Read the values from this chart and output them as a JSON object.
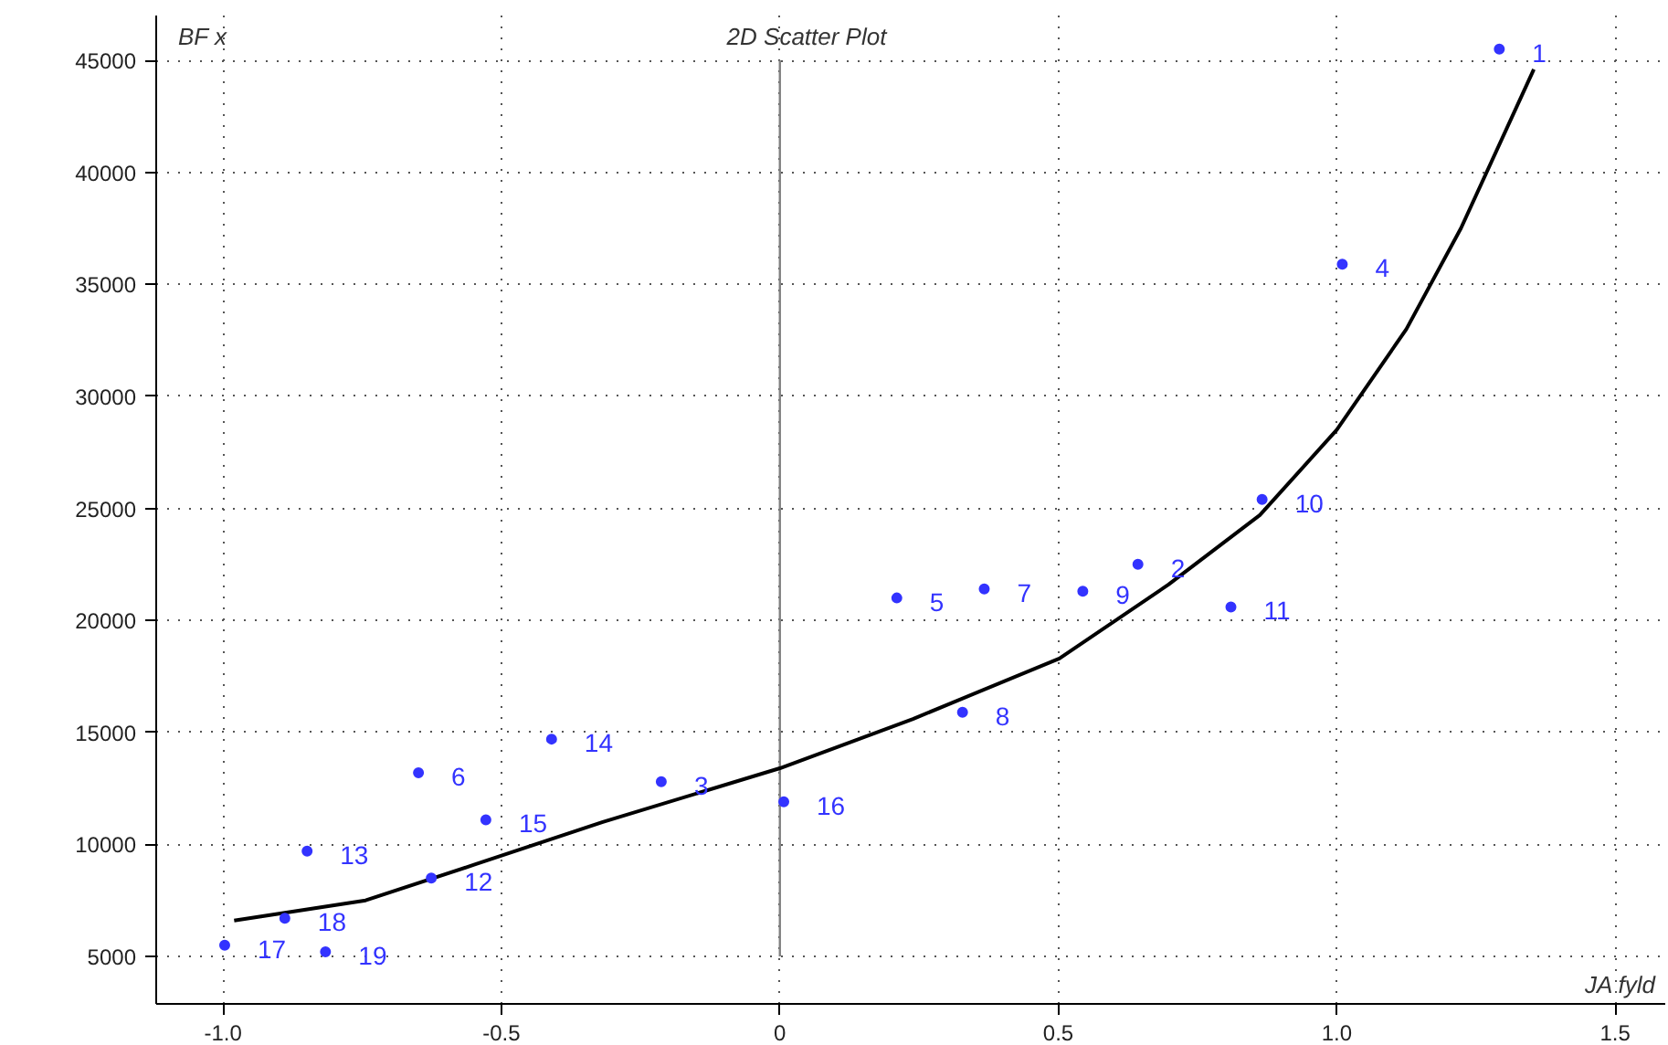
{
  "chart_data": {
    "type": "scatter",
    "title": "2D Scatter Plot",
    "xlabel": "JA fyld",
    "ylabel": "BF x",
    "xlim": [
      -1.12,
      1.59
    ],
    "ylim": [
      2880,
      47000
    ],
    "xticks": [
      {
        "value": -1.0,
        "label": "-1.0"
      },
      {
        "value": -0.5,
        "label": "-0.5"
      },
      0,
      {
        "value": 0.5,
        "label": "0.5"
      },
      {
        "value": 1.0,
        "label": "1.0"
      },
      {
        "value": 1.5,
        "label": "1.5"
      }
    ],
    "yticks": [
      5000,
      10000,
      15000,
      20000,
      25000,
      30000,
      35000,
      40000,
      45000
    ],
    "grid": true,
    "marker": "circle",
    "ref_lines": [
      {
        "axis": "x",
        "value": 0,
        "label": null,
        "color": "#808080"
      }
    ],
    "series": [
      {
        "color": "#3333ff",
        "x": [
          1.292,
          0.643,
          -0.213,
          1.01,
          0.21,
          -0.649,
          0.367,
          0.328,
          0.544,
          0.866,
          0.81,
          -0.626,
          -0.849,
          -0.41,
          -0.528,
          0.007,
          -0.997,
          -0.889,
          -0.816
        ],
        "values": [
          45500,
          22500,
          12800,
          35900,
          21000,
          13200,
          21400,
          15900,
          21300,
          25400,
          20600,
          8500,
          9700,
          14700,
          11100,
          11900,
          5500,
          6700,
          5200
        ]
      },
      {
        "type": "line",
        "color": "#000000",
        "line_style": "solid",
        "marker": "none",
        "x": [
          -0.98,
          -0.744,
          -0.548,
          -0.318,
          0,
          0.239,
          0.502,
          0.698,
          0.862,
          1.0,
          1.125,
          1.223,
          1.354
        ],
        "values": [
          6600,
          7500,
          9100,
          11000,
          13400,
          15600,
          18300,
          21600,
          24700,
          28500,
          33000,
          37500,
          44600
        ]
      }
    ],
    "annotations": [
      {
        "text": "1",
        "x": 1.292,
        "y": 45500
      },
      {
        "text": "2",
        "x": 0.643,
        "y": 22500
      },
      {
        "text": "3",
        "x": -0.213,
        "y": 12800
      },
      {
        "text": "4",
        "x": 1.01,
        "y": 35900
      },
      {
        "text": "5",
        "x": 0.21,
        "y": 21000
      },
      {
        "text": "6",
        "x": -0.649,
        "y": 13200
      },
      {
        "text": "7",
        "x": 0.367,
        "y": 21400
      },
      {
        "text": "8",
        "x": 0.328,
        "y": 15900
      },
      {
        "text": "9",
        "x": 0.544,
        "y": 21300
      },
      {
        "text": "10",
        "x": 0.866,
        "y": 25400
      },
      {
        "text": "11",
        "x": 0.81,
        "y": 20600
      },
      {
        "text": "12",
        "x": -0.626,
        "y": 8500
      },
      {
        "text": "13",
        "x": -0.849,
        "y": 9700
      },
      {
        "text": "14",
        "x": -0.41,
        "y": 14700
      },
      {
        "text": "15",
        "x": -0.528,
        "y": 11100
      },
      {
        "text": "16",
        "x": 0.007,
        "y": 11900
      },
      {
        "text": "17",
        "x": -0.997,
        "y": 5500
      },
      {
        "text": "18",
        "x": -0.889,
        "y": 6700
      },
      {
        "text": "19",
        "x": -0.816,
        "y": 5200
      }
    ]
  }
}
